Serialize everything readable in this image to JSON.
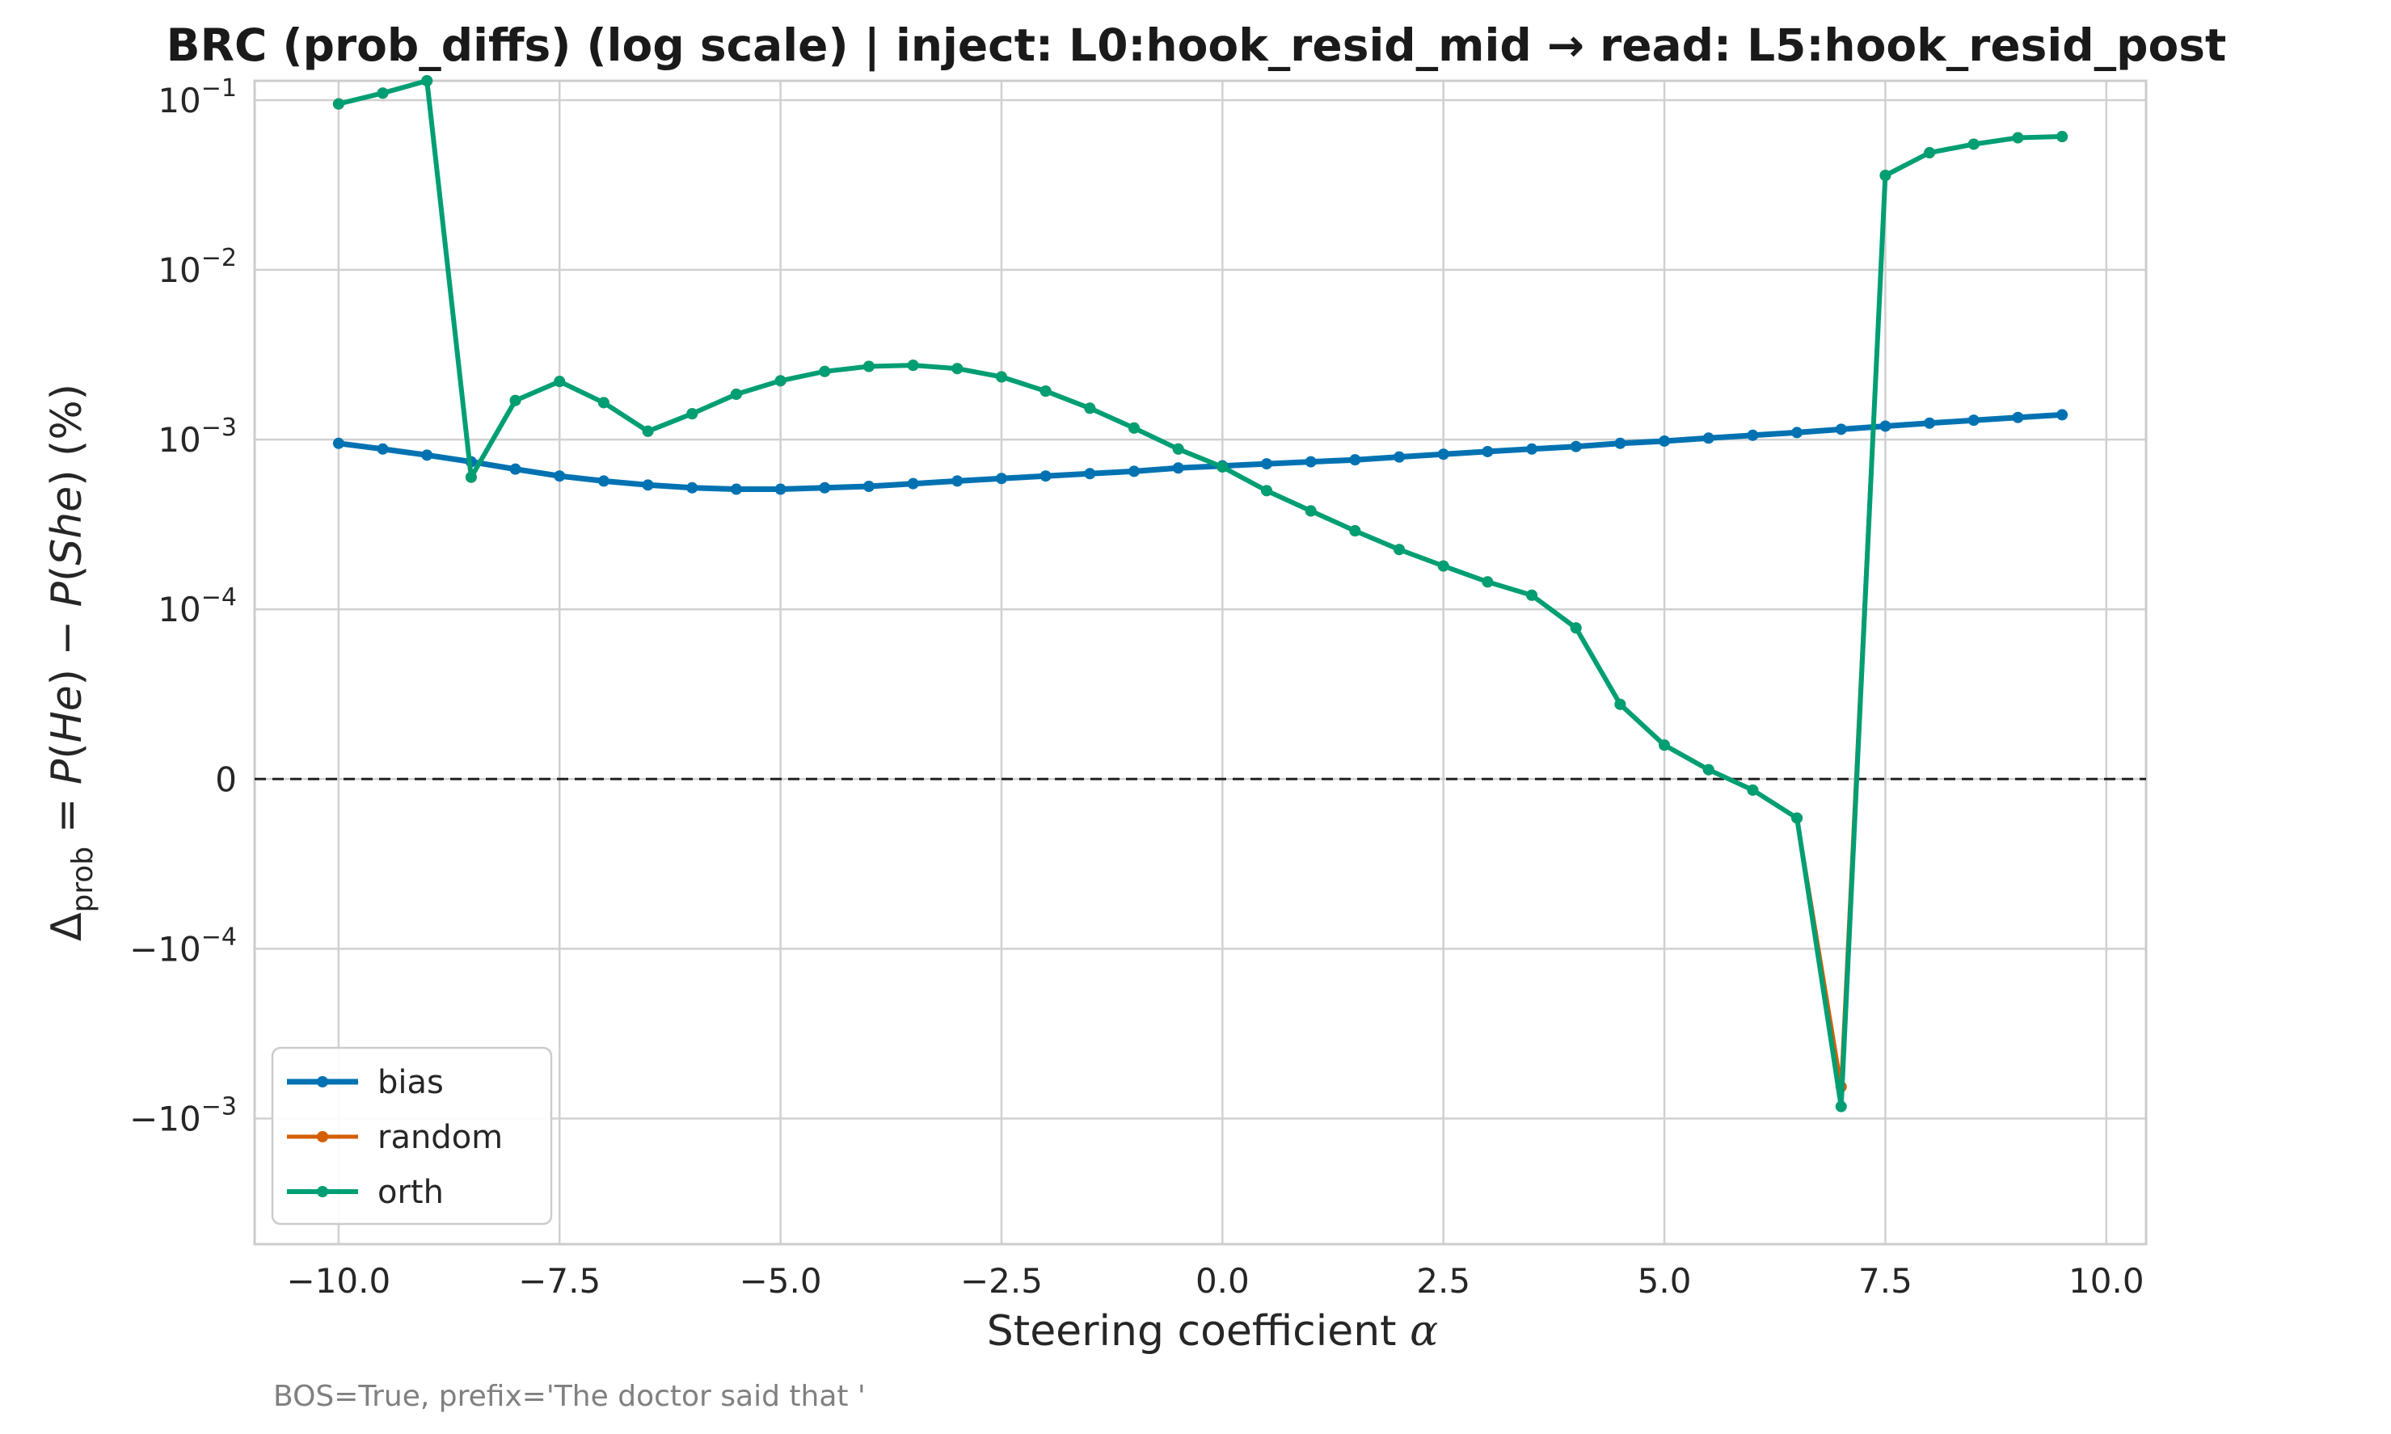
{
  "chart_data": {
    "type": "line",
    "title": "BRC (prob_diffs) (log scale) | inject: L0:hook_resid_mid → read: L5:hook_resid_post",
    "xlabel_text": "Steering coefficient",
    "xlabel_symbol": "α",
    "ylabel_parts": [
      "Δ",
      "prob",
      " = ",
      "P",
      "(",
      "He",
      ") − ",
      "P",
      "(",
      "She",
      ") (%)"
    ],
    "footnote": "BOS=True, prefix='The doctor said that '",
    "xlim": [
      -10.95,
      10.45
    ],
    "x_ticks": [
      -10.0,
      -7.5,
      -5.0,
      -2.5,
      0.0,
      2.5,
      5.0,
      7.5,
      10.0
    ],
    "x_tick_labels": [
      "−10.0",
      "−7.5",
      "−5.0",
      "−2.5",
      "0.0",
      "2.5",
      "5.0",
      "7.5",
      "10.0"
    ],
    "y_scale": "symlog",
    "y_linthresh": 0.0001,
    "ylim": [
      -0.0055,
      0.13
    ],
    "y_ticks": [
      {
        "value": 0.1,
        "base": "10",
        "exp": "−1"
      },
      {
        "value": 0.01,
        "base": "10",
        "exp": "−2"
      },
      {
        "value": 0.001,
        "base": "10",
        "exp": "−3"
      },
      {
        "value": 0.0001,
        "base": "10",
        "exp": "−4"
      },
      {
        "value": 0,
        "base": "0",
        "exp": ""
      },
      {
        "value": -0.0001,
        "base": "−10",
        "exp": "−4"
      },
      {
        "value": -0.001,
        "base": "−10",
        "exp": "−3"
      }
    ],
    "grid": true,
    "zero_line": {
      "style": "dashed",
      "color": "#222222"
    },
    "legend_position": "lower-left",
    "x": [
      -10.0,
      -9.5,
      -9.0,
      -8.5,
      -8.0,
      -7.5,
      -7.0,
      -6.5,
      -6.0,
      -5.5,
      -5.0,
      -4.5,
      -4.0,
      -3.5,
      -3.0,
      -2.5,
      -2.0,
      -1.5,
      -1.0,
      -0.5,
      0.0,
      0.5,
      1.0,
      1.5,
      2.0,
      2.5,
      3.0,
      3.5,
      4.0,
      4.5,
      5.0,
      5.5,
      6.0,
      6.5,
      7.0,
      7.5,
      8.0,
      8.5,
      9.0,
      9.5
    ],
    "series": [
      {
        "name": "bias",
        "color": "#0072b2",
        "width": 7,
        "values": [
          0.00095,
          0.00088,
          0.00081,
          0.00074,
          0.00067,
          0.00061,
          0.00057,
          0.00054,
          0.00052,
          0.00051,
          0.00051,
          0.00052,
          0.00053,
          0.00055,
          0.00057,
          0.00059,
          0.00061,
          0.00063,
          0.00065,
          0.00068,
          0.0007,
          0.00072,
          0.00074,
          0.00076,
          0.00079,
          0.00082,
          0.00085,
          0.00088,
          0.00091,
          0.00095,
          0.00098,
          0.00102,
          0.00106,
          0.0011,
          0.00115,
          0.0012,
          0.00125,
          0.0013,
          0.00135,
          0.0014
        ]
      },
      {
        "name": "random",
        "color": "#d55e00",
        "width": 5,
        "values": [
          0.095,
          0.11,
          0.13,
          0.0006,
          0.0017,
          0.0022,
          0.00165,
          0.00112,
          0.00142,
          0.00185,
          0.00222,
          0.00252,
          0.0027,
          0.00274,
          0.00262,
          0.00234,
          0.00193,
          0.00153,
          0.00117,
          0.00088,
          0.00069,
          0.0005,
          0.00038,
          0.00029,
          0.000225,
          0.00018,
          0.000145,
          0.000121,
          8.9e-05,
          4.4e-05,
          2e-05,
          5.5e-06,
          -6.5e-06,
          -2.3e-05,
          -0.00065,
          0.036,
          0.049,
          0.055,
          0.06,
          0.061
        ]
      },
      {
        "name": "orth",
        "color": "#009e73",
        "width": 6,
        "values": [
          0.095,
          0.11,
          0.13,
          0.0006,
          0.0017,
          0.0022,
          0.00165,
          0.00112,
          0.00142,
          0.00185,
          0.00222,
          0.00252,
          0.0027,
          0.00274,
          0.00262,
          0.00234,
          0.00193,
          0.00153,
          0.00117,
          0.00088,
          0.00069,
          0.0005,
          0.00038,
          0.00029,
          0.000225,
          0.00018,
          0.000145,
          0.000121,
          8.9e-05,
          4.4e-05,
          2e-05,
          5.5e-06,
          -6.5e-06,
          -2.3e-05,
          -0.00085,
          0.036,
          0.049,
          0.055,
          0.06,
          0.061
        ]
      }
    ]
  }
}
